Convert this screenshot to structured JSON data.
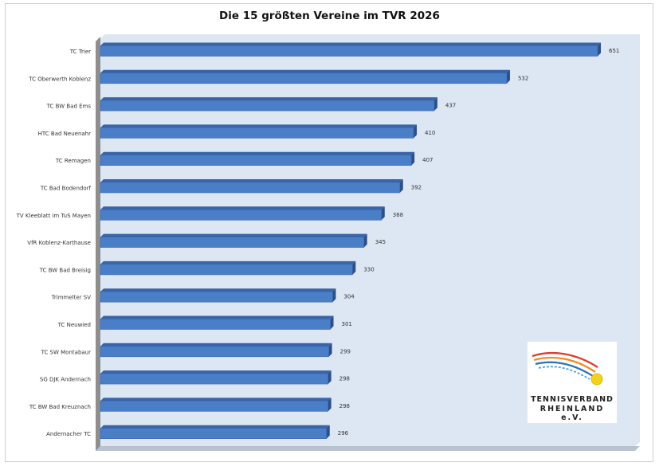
{
  "chart_data": {
    "type": "bar",
    "orientation": "horizontal",
    "title": "Die 15 größten Vereine im TVR 2026",
    "categories": [
      "TC Trier",
      "TC Oberwerth Koblenz",
      "TC BW Bad Ems",
      "HTC Bad Neuenahr",
      "TC Remagen",
      "TC Bad Bodendorf",
      "TV Kleeblatt im TuS Mayen",
      "VfR Koblenz-Karthause",
      "TC BW Bad Breisig",
      "Trimmelter SV",
      "TC Neuwied",
      "TC SW Montabaur",
      "SG DJK Andernach",
      "TC BW Bad Kreuznach",
      "Andernacher TC"
    ],
    "values": [
      651,
      532,
      437,
      410,
      407,
      392,
      368,
      345,
      330,
      304,
      301,
      299,
      298,
      298,
      296
    ],
    "xlim": [
      0,
      700
    ],
    "grid": false,
    "legend": "none",
    "bar_color": "#4a7ec7",
    "bar_shade_color": "#2b4f8a",
    "plot_bg": "#dde6f3"
  },
  "logo": {
    "line1": "TENNISVERBAND",
    "line2": "RHEINLAND e.V."
  }
}
